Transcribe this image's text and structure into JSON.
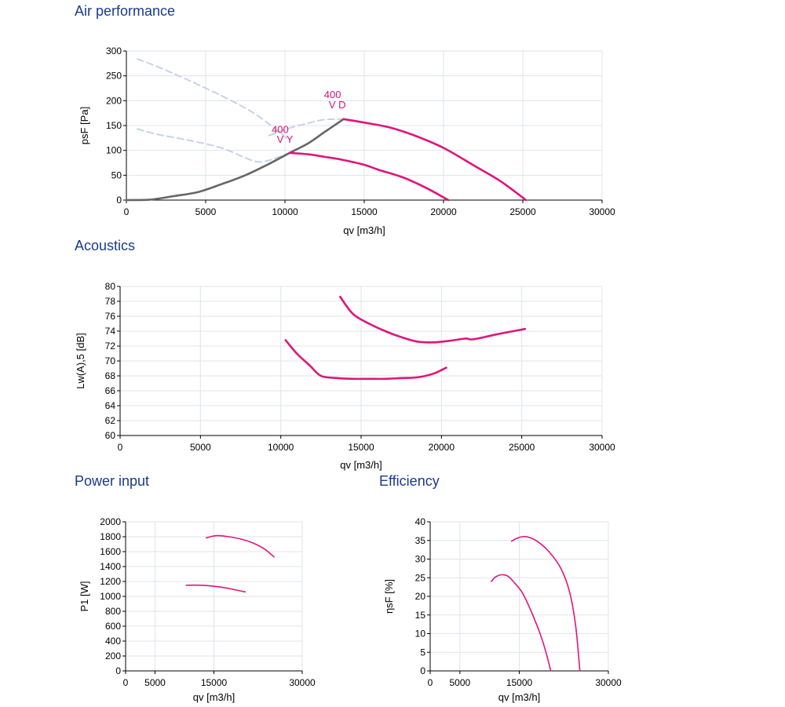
{
  "sections": {
    "air": "Air performance",
    "acoustics": "Acoustics",
    "power": "Power input",
    "efficiency": "Efficiency"
  },
  "colors": {
    "curve": "#e0157a",
    "system": "#666666",
    "dashed": "#c7d3e6",
    "grid": "#dfe3ea",
    "title": "#1a3a8a",
    "label": "#d4147a"
  },
  "chart_data": [
    {
      "id": "air",
      "type": "line",
      "xlabel": "qv [m3/h]",
      "ylabel": "psF [Pa]",
      "xlim": [
        0,
        30000
      ],
      "ylim": [
        0,
        300
      ],
      "xticks": [
        0,
        5000,
        10000,
        15000,
        20000,
        25000,
        30000
      ],
      "yticks": [
        0,
        50,
        100,
        150,
        200,
        250,
        300
      ],
      "grid": true,
      "series": [
        {
          "name": "400 V D",
          "style": "solid",
          "color": "#e0157a",
          "x": [
            13700,
            15000,
            16500,
            18000,
            20000,
            22000,
            23500,
            24500,
            25200
          ],
          "y": [
            163,
            156,
            147,
            132,
            105,
            68,
            40,
            17,
            0
          ]
        },
        {
          "name": "400 V Y",
          "style": "solid",
          "color": "#e0157a",
          "x": [
            10300,
            11500,
            12500,
            13500,
            15000,
            16000,
            17500,
            19000,
            20300
          ],
          "y": [
            95,
            92,
            87,
            82,
            71,
            60,
            45,
            23,
            0
          ]
        },
        {
          "style": "solid",
          "color": "#666666",
          "x": [
            0,
            1500,
            3000,
            4500,
            6000,
            7500,
            9000,
            10300,
            11500,
            12500,
            13700
          ],
          "y": [
            0,
            1,
            8,
            16,
            32,
            50,
            73,
            95,
            115,
            137,
            163
          ]
        },
        {
          "style": "dashed",
          "color": "#c7d3e6",
          "x": [
            700,
            2000,
            4000,
            6000,
            7500,
            8500,
            9500,
            10300
          ],
          "y": [
            284,
            268,
            240,
            210,
            185,
            165,
            140,
            120
          ]
        },
        {
          "style": "dashed",
          "color": "#c7d3e6",
          "x": [
            700,
            2000,
            4000,
            6000,
            7500,
            8300,
            9000,
            10300
          ],
          "y": [
            143,
            132,
            120,
            105,
            85,
            77,
            80,
            95
          ]
        },
        {
          "style": "dashed",
          "color": "#c7d3e6",
          "x": [
            9000,
            10300,
            11500,
            12500,
            13700
          ],
          "y": [
            130,
            145,
            155,
            162,
            163
          ]
        }
      ],
      "annotations": [
        {
          "text": "400",
          "x": 13000,
          "y": 205
        },
        {
          "text": "V D",
          "x": 13300,
          "y": 185
        },
        {
          "text": "400",
          "x": 9700,
          "y": 135
        },
        {
          "text": "V Y",
          "x": 10000,
          "y": 115
        }
      ]
    },
    {
      "id": "acoustics",
      "type": "line",
      "xlabel": "qv [m3/h]",
      "ylabel": "Lw(A),5 [dB]",
      "xlim": [
        0,
        30000
      ],
      "ylim": [
        60,
        80
      ],
      "xticks": [
        0,
        5000,
        10000,
        15000,
        20000,
        25000,
        30000
      ],
      "yticks": [
        60,
        62,
        64,
        66,
        68,
        70,
        72,
        74,
        76,
        78,
        80
      ],
      "grid": true,
      "series": [
        {
          "style": "solid",
          "color": "#e0157a",
          "x": [
            13700,
            14500,
            15500,
            16500,
            17500,
            18500,
            19500,
            20500,
            21500,
            22000,
            23500,
            25200
          ],
          "y": [
            78.6,
            76.3,
            75.0,
            74.0,
            73.2,
            72.6,
            72.5,
            72.7,
            73.0,
            72.9,
            73.6,
            74.3
          ]
        },
        {
          "style": "solid",
          "color": "#e0157a",
          "x": [
            10300,
            11000,
            11800,
            12500,
            13500,
            14500,
            15500,
            16500,
            17500,
            18500,
            19500,
            20300
          ],
          "y": [
            72.8,
            71.0,
            69.4,
            68.0,
            67.7,
            67.6,
            67.6,
            67.6,
            67.7,
            67.8,
            68.3,
            69.1
          ]
        }
      ]
    },
    {
      "id": "power",
      "type": "line",
      "xlabel": "qv [m3/h]",
      "ylabel": "P1 [W]",
      "xlim": [
        0,
        30000
      ],
      "ylim": [
        0,
        2000
      ],
      "xticks": [
        0,
        5000,
        15000,
        30000
      ],
      "yticks": [
        0,
        200,
        400,
        600,
        800,
        1000,
        1200,
        1400,
        1600,
        1800,
        2000
      ],
      "grid": true,
      "series": [
        {
          "style": "solid",
          "color": "#e0157a",
          "x": [
            13700,
            15500,
            17500,
            19500,
            21500,
            23500,
            25200
          ],
          "y": [
            1785,
            1815,
            1800,
            1770,
            1720,
            1640,
            1530
          ]
        },
        {
          "style": "solid",
          "color": "#e0157a",
          "x": [
            10300,
            12500,
            14500,
            16500,
            18500,
            20300
          ],
          "y": [
            1150,
            1150,
            1140,
            1120,
            1090,
            1060
          ]
        }
      ]
    },
    {
      "id": "efficiency",
      "type": "line",
      "xlabel": "qv [m3/h]",
      "ylabel": "ηsF [%]",
      "xlim": [
        0,
        30000
      ],
      "ylim": [
        0,
        40
      ],
      "xticks": [
        0,
        5000,
        15000,
        30000
      ],
      "yticks": [
        0,
        5,
        10,
        15,
        20,
        25,
        30,
        35,
        40
      ],
      "grid": true,
      "series": [
        {
          "style": "solid",
          "color": "#e0157a",
          "x": [
            13700,
            14500,
            15500,
            16500,
            18000,
            20000,
            22000,
            23500,
            24500,
            25200
          ],
          "y": [
            34.8,
            35.5,
            36.0,
            35.9,
            34.8,
            32.0,
            27.5,
            21.0,
            12.0,
            0
          ]
        },
        {
          "style": "solid",
          "color": "#e0157a",
          "x": [
            10300,
            11000,
            12000,
            13000,
            14000,
            15500,
            17000,
            18500,
            19500,
            20300
          ],
          "y": [
            24.0,
            25.2,
            25.8,
            25.5,
            24.0,
            21.0,
            16.0,
            10.0,
            5.0,
            0
          ]
        }
      ]
    }
  ]
}
